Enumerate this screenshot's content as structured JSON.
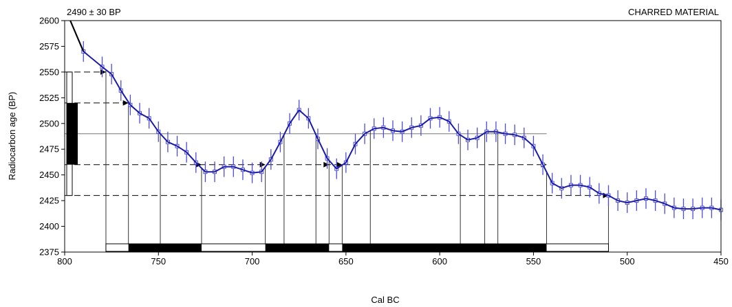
{
  "chart_data": {
    "type": "line",
    "title_left": "2490 ± 30 BP",
    "title_right": "CHARRED MATERIAL",
    "xlabel": "Cal BC",
    "ylabel": "Radiocarbon age (BP)",
    "x_reversed": true,
    "xlim": [
      800,
      450
    ],
    "ylim": [
      2375,
      2600
    ],
    "x_ticks": [
      800,
      750,
      700,
      650,
      600,
      550,
      500,
      450
    ],
    "y_ticks": [
      2375,
      2400,
      2425,
      2450,
      2475,
      2500,
      2525,
      2550,
      2575,
      2600
    ],
    "colors": {
      "curve": "#1a1aa8",
      "error_bars": "#4a4ae0",
      "reference": "#000000"
    },
    "sample": {
      "mean_bp": 2490,
      "sigma_bp": 30
    },
    "calibration_curve": {
      "x": [
        797,
        790,
        780,
        775,
        770,
        765,
        760,
        755,
        750,
        745,
        740,
        735,
        730,
        725,
        720,
        715,
        710,
        705,
        700,
        695,
        690,
        685,
        680,
        675,
        670,
        665,
        660,
        655,
        650,
        645,
        640,
        635,
        630,
        625,
        620,
        615,
        610,
        605,
        600,
        595,
        590,
        585,
        580,
        575,
        570,
        565,
        560,
        555,
        550,
        545,
        540,
        535,
        530,
        525,
        520,
        515,
        510,
        505,
        500,
        495,
        490,
        485,
        480,
        475,
        470,
        465,
        460,
        455,
        450
      ],
      "y": [
        2600,
        2570,
        2555,
        2548,
        2532,
        2518,
        2510,
        2505,
        2492,
        2482,
        2478,
        2472,
        2462,
        2453,
        2453,
        2458,
        2458,
        2455,
        2452,
        2453,
        2465,
        2482,
        2500,
        2513,
        2505,
        2485,
        2466,
        2456,
        2462,
        2480,
        2490,
        2495,
        2496,
        2493,
        2492,
        2496,
        2498,
        2505,
        2506,
        2502,
        2490,
        2484,
        2486,
        2492,
        2492,
        2490,
        2489,
        2486,
        2478,
        2460,
        2442,
        2437,
        2440,
        2440,
        2438,
        2432,
        2430,
        2425,
        2423,
        2425,
        2427,
        2425,
        2422,
        2418,
        2417,
        2417,
        2418,
        2418,
        2416
      ],
      "error_bar_halfwidth": 10
    },
    "reference_lines": {
      "solid_y": 2490,
      "dashed_y": [
        2550,
        2520,
        2460,
        2430
      ]
    },
    "intersections": [
      {
        "level": 2550,
        "x": 778
      },
      {
        "level": 2520,
        "x": 766
      },
      {
        "level": 2460,
        "x": 727
      },
      {
        "level": 2460,
        "x": 693
      },
      {
        "level": 2460,
        "x": 659
      },
      {
        "level": 2460,
        "x": 652
      },
      {
        "level": 2460,
        "x": 543
      },
      {
        "level": 2430,
        "x": 510
      }
    ],
    "vertical_drops_x": [
      778,
      766,
      749,
      727,
      693,
      683,
      666,
      659,
      652,
      637,
      589,
      576,
      569,
      543,
      510
    ],
    "ranges_1sigma": [
      [
        766,
        727
      ],
      [
        693,
        659
      ],
      [
        652,
        543
      ]
    ],
    "ranges_2sigma": [
      [
        778,
        510
      ]
    ]
  }
}
